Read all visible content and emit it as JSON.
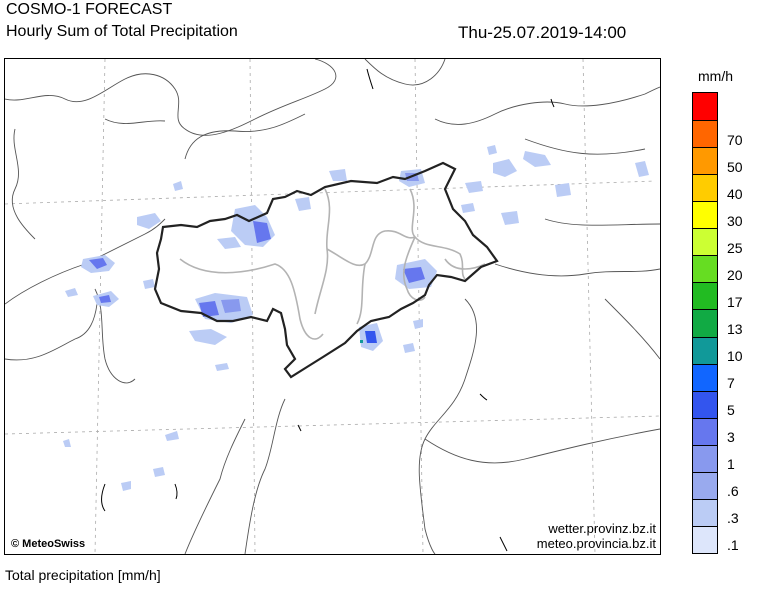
{
  "header": {
    "title": "COSMO-1 FORECAST",
    "subtitle": "Hourly Sum of Total Precipitation",
    "valid_time": "Thu-25.07.2019-14:00"
  },
  "footer": {
    "caption": "Total precipitation [mm/h]"
  },
  "map": {
    "credit": "© MeteoSwiss",
    "website_1": "wetter.provinz.bz.it",
    "website_2": "meteo.provincia.bz.it"
  },
  "legend": {
    "unit": "mm/h",
    "classes": [
      {
        "label": "",
        "color": "#ff0000"
      },
      {
        "label": "70",
        "color": "#ff6600"
      },
      {
        "label": "50",
        "color": "#ff9900"
      },
      {
        "label": "40",
        "color": "#ffcc00"
      },
      {
        "label": "30",
        "color": "#ffff00"
      },
      {
        "label": "25",
        "color": "#ccff33"
      },
      {
        "label": "20",
        "color": "#66dd22"
      },
      {
        "label": "17",
        "color": "#22bb22"
      },
      {
        "label": "13",
        "color": "#11aa44"
      },
      {
        "label": "10",
        "color": "#119999"
      },
      {
        "label": "7",
        "color": "#1166ff"
      },
      {
        "label": "5",
        "color": "#3355ee"
      },
      {
        "label": "3",
        "color": "#6677ee"
      },
      {
        "label": "1",
        "color": "#8899ee"
      },
      {
        "label": ".6",
        "color": "#99aaee"
      },
      {
        "label": ".3",
        "color": "#bbccf5"
      },
      {
        "label": ".1",
        "color": "#dde6fb"
      }
    ]
  }
}
